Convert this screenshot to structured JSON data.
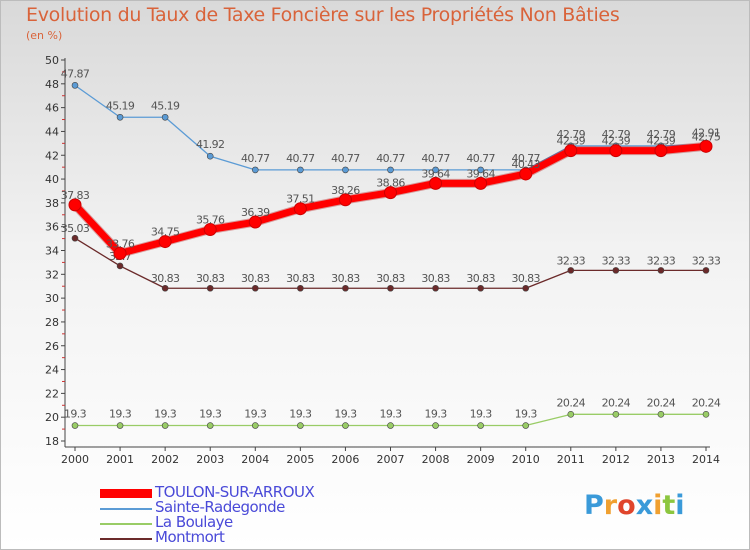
{
  "chart_data": {
    "type": "line",
    "title": "Evolution du Taux de Taxe Foncière sur les Propriétés Non Bâties",
    "subtitle": "(en %)",
    "x": [
      "2000",
      "2001",
      "2002",
      "2003",
      "2004",
      "2005",
      "2006",
      "2007",
      "2008",
      "2009",
      "2010",
      "2011",
      "2012",
      "2013",
      "2014"
    ],
    "ylim": [
      18,
      50
    ],
    "yticks": [
      18,
      20,
      22,
      24,
      26,
      28,
      30,
      32,
      34,
      36,
      38,
      40,
      42,
      44,
      46,
      48,
      50
    ],
    "grid": false,
    "legend_placement": "bottom-left",
    "series": [
      {
        "name": "TOULON-SUR-ARROUX",
        "color": "#ff0000",
        "values": [
          37.83,
          33.76,
          34.75,
          35.76,
          36.39,
          37.51,
          38.26,
          38.86,
          39.64,
          39.64,
          40.43,
          42.39,
          42.39,
          42.39,
          42.75
        ],
        "labels": [
          "37.83",
          "33.76",
          "34.75",
          "35.76",
          "36.39",
          "37.51",
          "38.26",
          "38.86",
          "39.64",
          "39.64",
          "40.43",
          "42.39",
          "42.39",
          "42.39",
          "42.75"
        ]
      },
      {
        "name": "Sainte-Radegonde",
        "color": "#5b9bd5",
        "values": [
          47.87,
          45.19,
          45.19,
          41.92,
          40.77,
          40.77,
          40.77,
          40.77,
          40.77,
          40.77,
          40.77,
          42.79,
          42.79,
          42.79,
          42.91
        ],
        "labels": [
          "47.87",
          "45.19",
          "45.19",
          "41.92",
          "40.77",
          "40.77",
          "40.77",
          "40.77",
          "40.77",
          "40.77",
          "40.77",
          "42.79",
          "42.79",
          "42.79",
          "42.91"
        ]
      },
      {
        "name": "La Boulaye",
        "color": "#99cc66",
        "values": [
          19.3,
          19.3,
          19.3,
          19.3,
          19.3,
          19.3,
          19.3,
          19.3,
          19.3,
          19.3,
          19.3,
          20.24,
          20.24,
          20.24,
          20.24
        ],
        "labels": [
          "19.3",
          "19.3",
          "19.3",
          "19.3",
          "19.3",
          "19.3",
          "19.3",
          "19.3",
          "19.3",
          "19.3",
          "19.3",
          "20.24",
          "20.24",
          "20.24",
          "20.24"
        ]
      },
      {
        "name": "Montmort",
        "color": "#6b2a2a",
        "values": [
          35.03,
          32.7,
          30.83,
          30.83,
          30.83,
          30.83,
          30.83,
          30.83,
          30.83,
          30.83,
          30.83,
          32.33,
          32.33,
          32.33,
          32.33
        ],
        "labels": [
          "35.03",
          "32.7",
          "30.83",
          "30.83",
          "30.83",
          "30.83",
          "30.83",
          "30.83",
          "30.83",
          "30.83",
          "30.83",
          "32.33",
          "32.33",
          "32.33",
          "32.33"
        ]
      }
    ]
  },
  "logo": {
    "letters": [
      "P",
      "r",
      "o",
      "x",
      "i",
      "t",
      "i"
    ],
    "colors": [
      "#3a9ad9",
      "#f0a030",
      "#e0452c",
      "#3a9ad9",
      "#f0a030",
      "#8cc63f",
      "#3a9ad9"
    ]
  }
}
